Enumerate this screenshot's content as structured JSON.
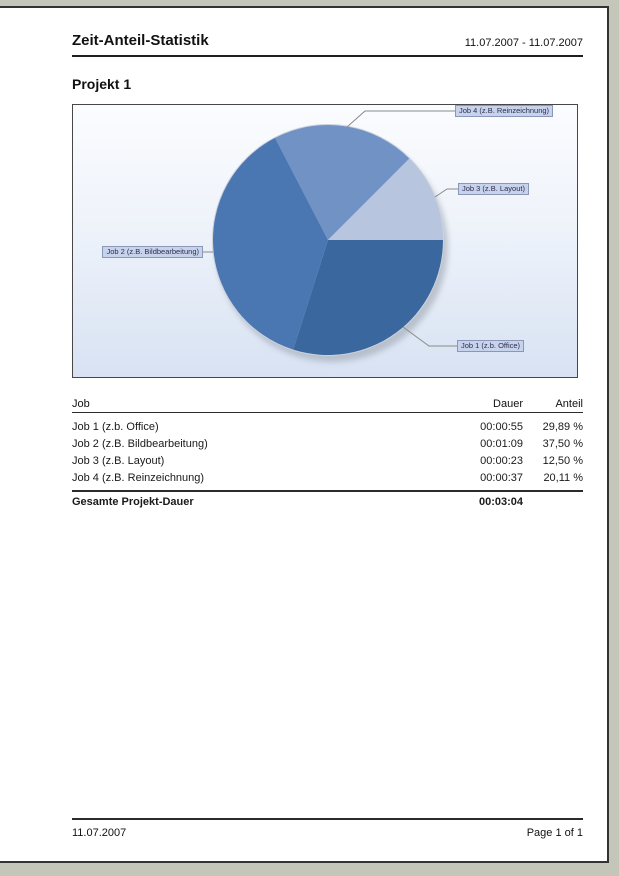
{
  "header": {
    "title": "Zeit-Anteil-Statistik",
    "date_range": "11.07.2007 - 11.07.2007"
  },
  "section_title": "Projekt 1",
  "chart_data": {
    "type": "pie",
    "title": "Projekt 1",
    "legend_position": "callout-labels",
    "slices": [
      {
        "label": "Job 1 (z.b. Office)",
        "value_pct": 29.89,
        "duration": "00:00:55",
        "color": "#3a689e"
      },
      {
        "label": "Job 2 (z.B. Bildbearbeitung)",
        "value_pct": 37.5,
        "duration": "00:01:09",
        "color": "#4a77b1"
      },
      {
        "label": "Job 3 (z.B. Layout)",
        "value_pct": 12.5,
        "duration": "00:00:23",
        "color": "#b8c5df"
      },
      {
        "label": "Job 4 (z.B. Reinzeichnung)",
        "value_pct": 20.11,
        "duration": "00:00:37",
        "color": "#7192c5"
      }
    ],
    "draw_order": [
      0,
      1,
      3,
      2
    ],
    "start_angle_deg": 0,
    "direction": "clockwise"
  },
  "table": {
    "columns": [
      "Job",
      "Dauer",
      "Anteil"
    ],
    "rows": [
      [
        "Job 1 (z.b. Office)",
        "00:00:55",
        "29,89 %"
      ],
      [
        "Job 2 (z.B. Bildbearbeitung)",
        "00:01:09",
        "37,50 %"
      ],
      [
        "Job 3 (z.B. Layout)",
        "00:00:23",
        "12,50 %"
      ],
      [
        "Job 4 (z.B. Reinzeichnung)",
        "00:00:37",
        "20,11 %"
      ]
    ],
    "footer": {
      "label": "Gesamte Projekt-Dauer",
      "value": "00:03:04",
      "anteil": ""
    }
  },
  "page_footer": {
    "date": "11.07.2007",
    "page_label": "Page 1 of 1"
  }
}
